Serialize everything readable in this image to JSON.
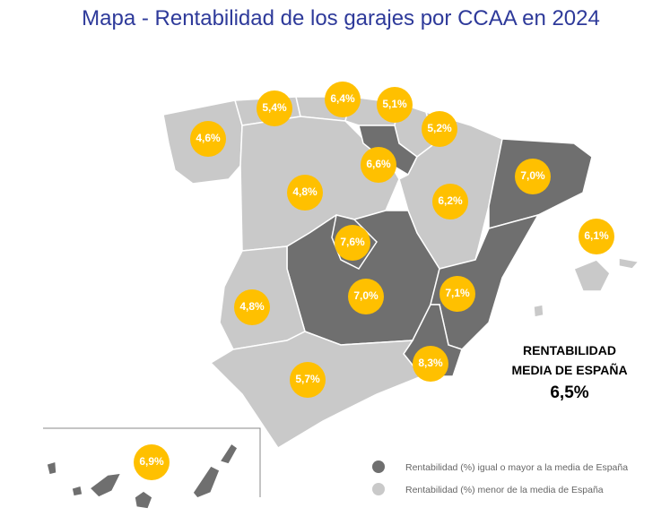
{
  "title": "Mapa - Rentabilidad de los garajes por CCAA en 2024",
  "badges": [
    "4,6%",
    "5,4%",
    "6,4%",
    "5,1%",
    "5,2%",
    "6,6%",
    "4,8%",
    "7,0%",
    "6,2%",
    "6,1%",
    "7,6%",
    "7,0%",
    "7,1%",
    "4,8%",
    "8,3%",
    "5,7%",
    "6,9%"
  ],
  "average": {
    "lines": [
      "RENTABILIDAD",
      "MEDIA DE ESPAÑA"
    ],
    "value": "6,5%"
  },
  "legend": [
    "Rentabilidad (%) igual o mayor a la media de España",
    "Rentabilidad (%) menor de la media de España"
  ]
}
